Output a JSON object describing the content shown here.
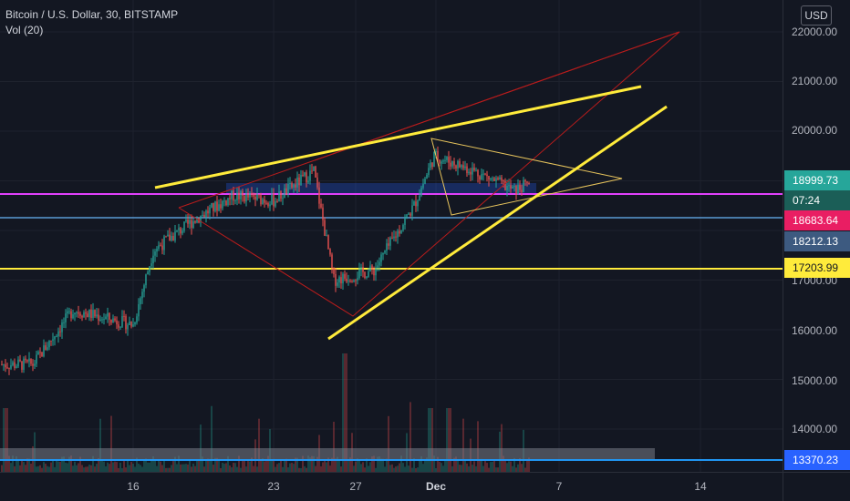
{
  "legend": {
    "title": "Bitcoin / U.S. Dollar, 30, BITSTAMP",
    "indicator": "Vol (20)"
  },
  "currency_button": "USD",
  "price_axis": {
    "ticks": [
      "22000.00",
      "21000.00",
      "20000.00",
      "17000.00",
      "16000.00",
      "15000.00",
      "14000.00"
    ]
  },
  "price_labels": {
    "last_price": "18999.73",
    "countdown": "07:24",
    "magenta_level": "18683.64",
    "blue_level": "18212.13",
    "yellow_level": "17203.99",
    "bottom_level": "13370.23"
  },
  "time_axis": {
    "ticks": [
      "16",
      "23",
      "27",
      "Dec",
      "7",
      "14"
    ]
  },
  "colors": {
    "background": "#131722",
    "up": "#26a69a",
    "down": "#ef5350",
    "magenta_line": "#e040fb",
    "blue_line": "#5b9bd5",
    "yellow": "#ffeb3b",
    "red_drawing": "#b71c1c",
    "last_price_label": "#26a69a",
    "countdown_label": "#26a69a",
    "magenta_label": "#e91e63",
    "blue_label": "#2962ff",
    "bottom_label": "#2962ff"
  },
  "chart_data": {
    "type": "candlestick",
    "title": "Bitcoin / U.S. Dollar, 30, BITSTAMP",
    "x": [
      "16",
      "23",
      "27",
      "Dec",
      "7",
      "14"
    ],
    "ylim": [
      13000,
      22200
    ],
    "key_levels": [
      {
        "price": 18683.64,
        "color": "magenta"
      },
      {
        "price": 18212.13,
        "color": "blue"
      },
      {
        "price": 17203.99,
        "color": "yellow"
      },
      {
        "price": 13370.23,
        "color": "blue"
      }
    ],
    "last_price": 18999.73,
    "approx_path": [
      {
        "date": "Nov 11",
        "price": 15300
      },
      {
        "date": "Nov 13",
        "price": 16400
      },
      {
        "date": "Nov 16",
        "price": 16100
      },
      {
        "date": "Nov 17",
        "price": 17600
      },
      {
        "date": "Nov 19",
        "price": 18200
      },
      {
        "date": "Nov 21",
        "price": 18700
      },
      {
        "date": "Nov 23",
        "price": 18600
      },
      {
        "date": "Nov 25",
        "price": 19200
      },
      {
        "date": "Nov 26",
        "price": 17000
      },
      {
        "date": "Nov 28",
        "price": 17200
      },
      {
        "date": "Nov 30",
        "price": 18500
      },
      {
        "date": "Dec 1",
        "price": 19500
      },
      {
        "date": "Dec 3",
        "price": 19200
      },
      {
        "date": "Dec 5",
        "price": 18800
      },
      {
        "date": "Dec 6",
        "price": 19000
      }
    ]
  }
}
